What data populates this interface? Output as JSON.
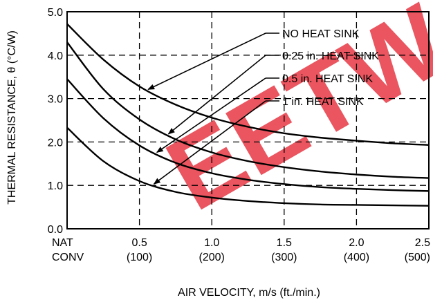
{
  "chart_data": {
    "type": "line",
    "title": "",
    "xlabel": "AIR VELOCITY, m/s (ft./min.)",
    "ylabel": "THERMAL RESISTANCE, θ (°C/W)",
    "xlim": [
      0,
      2.5
    ],
    "ylim": [
      0,
      5
    ],
    "grid": true,
    "y_ticks": [
      "0.0",
      "1.0",
      "2.0",
      "3.0",
      "4.0",
      "5.0"
    ],
    "x_ticks": [
      {
        "value": 0,
        "line1": "NAT",
        "line2": "CONV"
      },
      {
        "value": 0.5,
        "line1": "0.5",
        "line2": "(100)"
      },
      {
        "value": 1.0,
        "line1": "1.0",
        "line2": "(200)"
      },
      {
        "value": 1.5,
        "line1": "1.5",
        "line2": "(300)"
      },
      {
        "value": 2.0,
        "line1": "2.0",
        "line2": "(400)"
      },
      {
        "value": 2.5,
        "line1": "2.5",
        "line2": "(500)"
      }
    ],
    "series": [
      {
        "name": "NO HEAT SINK",
        "x": [
          0,
          0.25,
          0.5,
          0.75,
          1.0,
          1.25,
          1.5,
          1.75,
          2.0,
          2.25,
          2.5
        ],
        "y": [
          4.72,
          3.9,
          3.28,
          2.86,
          2.56,
          2.35,
          2.2,
          2.1,
          2.03,
          1.97,
          1.93
        ]
      },
      {
        "name": "0.25 in. HEAT SINK",
        "x": [
          0,
          0.25,
          0.5,
          0.75,
          1.0,
          1.25,
          1.5,
          1.75,
          2.0,
          2.25,
          2.5
        ],
        "y": [
          4.3,
          3.22,
          2.52,
          2.06,
          1.76,
          1.56,
          1.42,
          1.32,
          1.25,
          1.2,
          1.17
        ]
      },
      {
        "name": "0.5 in. HEAT SINK",
        "x": [
          0,
          0.25,
          0.5,
          0.75,
          1.0,
          1.25,
          1.5,
          1.75,
          2.0,
          2.25,
          2.5
        ],
        "y": [
          3.45,
          2.55,
          1.92,
          1.52,
          1.28,
          1.13,
          1.03,
          0.96,
          0.92,
          0.89,
          0.87
        ]
      },
      {
        "name": "1 in. HEAT SINK",
        "x": [
          0,
          0.25,
          0.5,
          0.75,
          1.0,
          1.25,
          1.5,
          1.75,
          2.0,
          2.25,
          2.5
        ],
        "y": [
          2.33,
          1.56,
          1.1,
          0.85,
          0.72,
          0.64,
          0.59,
          0.56,
          0.55,
          0.54,
          0.53
        ]
      }
    ],
    "annotations": [
      {
        "text": "NO HEAT SINK",
        "series": 0,
        "points_to_x": 0.56
      },
      {
        "text": "0.25 in. HEAT SINK",
        "series": 1,
        "points_to_x": 0.7
      },
      {
        "text": "0.5 in. HEAT SINK",
        "series": 2,
        "points_to_x": 0.62
      },
      {
        "text": "1 in. HEAT SINK",
        "series": 3,
        "points_to_x": 0.6
      }
    ],
    "watermark": "EETW",
    "colors": {
      "line": "#000000",
      "grid": "#000000",
      "watermark": "#e8434e"
    }
  }
}
